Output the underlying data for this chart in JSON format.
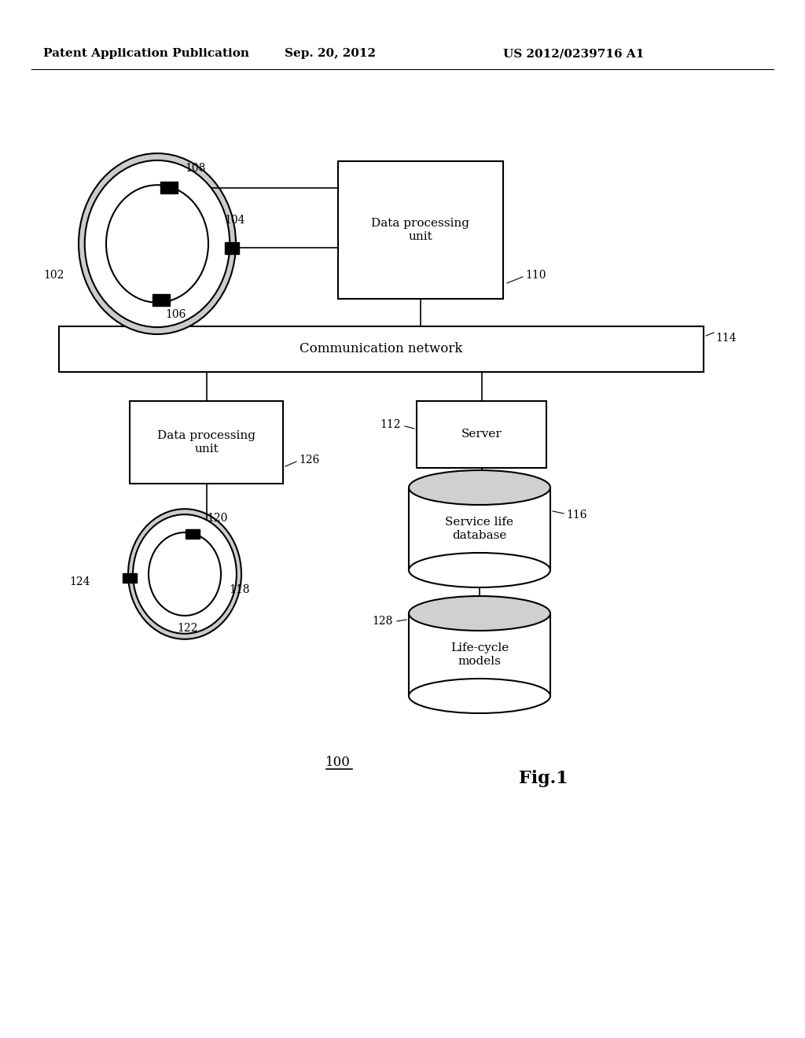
{
  "bg_color": "#ffffff",
  "header_left": "Patent Application Publication",
  "header_mid": "Sep. 20, 2012",
  "header_right": "US 2012/0239716 A1",
  "fig_label": "Fig.1",
  "fig_number": "100"
}
